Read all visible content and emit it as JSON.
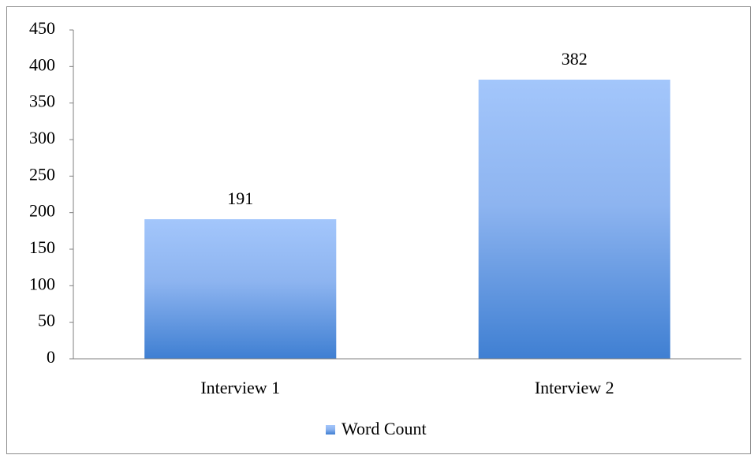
{
  "chart_data": {
    "type": "bar",
    "categories": [
      "Interview 1",
      "Interview 2"
    ],
    "series": [
      {
        "name": "Word Count",
        "color": "#3f7fd2",
        "values": [
          191,
          382
        ]
      }
    ],
    "ylim": [
      0,
      450
    ],
    "yticks": [
      0,
      50,
      100,
      150,
      200,
      250,
      300,
      350,
      400,
      450
    ],
    "legend": "bottom"
  }
}
